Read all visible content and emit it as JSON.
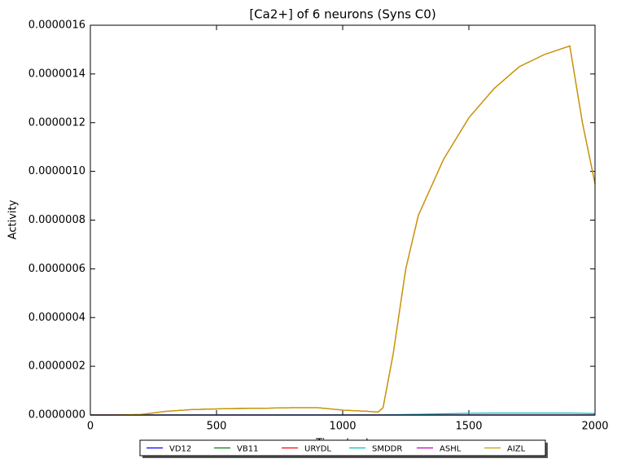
{
  "chart_data": {
    "type": "line",
    "title": "[Ca2+] of 6 neurons (Syns C0)",
    "xlabel": "Time (ms)",
    "ylabel": "Activity",
    "x": [
      0,
      100,
      200,
      300,
      400,
      500,
      600,
      700,
      800,
      900,
      1000,
      1100,
      1140,
      1160,
      1200,
      1250,
      1300,
      1400,
      1500,
      1600,
      1700,
      1800,
      1900,
      1950,
      2000
    ],
    "series": [
      {
        "name": "VD12",
        "color": "#0000ff",
        "values": [
          0,
          0,
          0,
          0,
          0,
          0,
          0,
          0,
          0,
          0,
          0,
          0,
          0,
          0,
          0,
          0,
          0,
          0,
          0,
          0,
          0,
          0,
          0,
          0,
          0
        ]
      },
      {
        "name": "VB11",
        "color": "#008000",
        "values": [
          0,
          0,
          0,
          0,
          0,
          0,
          0,
          0,
          0,
          0,
          0,
          0,
          0,
          0,
          0,
          0,
          0,
          0,
          0,
          0,
          0,
          0,
          0,
          0,
          0
        ]
      },
      {
        "name": "URYDL",
        "color": "#ff0000",
        "values": [
          0,
          0,
          2e-09,
          1.5e-08,
          2.2e-08,
          2.5e-08,
          2.7e-08,
          2.8e-08,
          3e-08,
          3e-08,
          2e-08,
          1.5e-08,
          1.2e-08,
          3e-08,
          2.5e-07,
          6e-07,
          8.2e-07,
          1.05e-06,
          1.22e-06,
          1.34e-06,
          1.43e-06,
          1.48e-06,
          1.515e-06,
          1.2e-06,
          9.5e-07
        ]
      },
      {
        "name": "SMDDR",
        "color": "#00bfbf",
        "values": [
          0,
          0,
          0,
          0,
          0,
          0,
          0,
          0,
          0,
          0,
          0,
          0,
          0,
          0,
          1e-09,
          2e-09,
          3e-09,
          5e-09,
          7e-09,
          8e-09,
          8e-09,
          8e-09,
          8e-09,
          7e-09,
          6e-09
        ]
      },
      {
        "name": "ASHL",
        "color": "#bf00bf",
        "values": [
          0,
          0,
          0,
          0,
          0,
          0,
          0,
          0,
          0,
          0,
          0,
          0,
          0,
          0,
          0,
          0,
          0,
          0,
          0,
          0,
          0,
          0,
          0,
          0,
          0
        ]
      },
      {
        "name": "AIZL",
        "color": "#bfa000",
        "values": [
          0,
          0,
          2e-09,
          1.5e-08,
          2.2e-08,
          2.5e-08,
          2.7e-08,
          2.8e-08,
          3e-08,
          3e-08,
          2e-08,
          1.5e-08,
          1.2e-08,
          3e-08,
          2.5e-07,
          6e-07,
          8.2e-07,
          1.05e-06,
          1.22e-06,
          1.34e-06,
          1.43e-06,
          1.48e-06,
          1.515e-06,
          1.2e-06,
          9.5e-07
        ]
      }
    ],
    "xlim": [
      0,
      2000
    ],
    "xticks": [
      0,
      500,
      1000,
      1500,
      2000
    ],
    "ylim": [
      0,
      1.6e-06
    ],
    "yticks": [
      {
        "value": 0,
        "label": "0.0000000"
      },
      {
        "value": 2e-07,
        "label": "0.0000002"
      },
      {
        "value": 4e-07,
        "label": "0.0000004"
      },
      {
        "value": 6e-07,
        "label": "0.0000006"
      },
      {
        "value": 8e-07,
        "label": "0.0000008"
      },
      {
        "value": 1e-06,
        "label": "0.0000010"
      },
      {
        "value": 1.2e-06,
        "label": "0.0000012"
      },
      {
        "value": 1.4e-06,
        "label": "0.0000014"
      },
      {
        "value": 1.6e-06,
        "label": "0.0000016"
      }
    ],
    "legend": "lower center"
  }
}
